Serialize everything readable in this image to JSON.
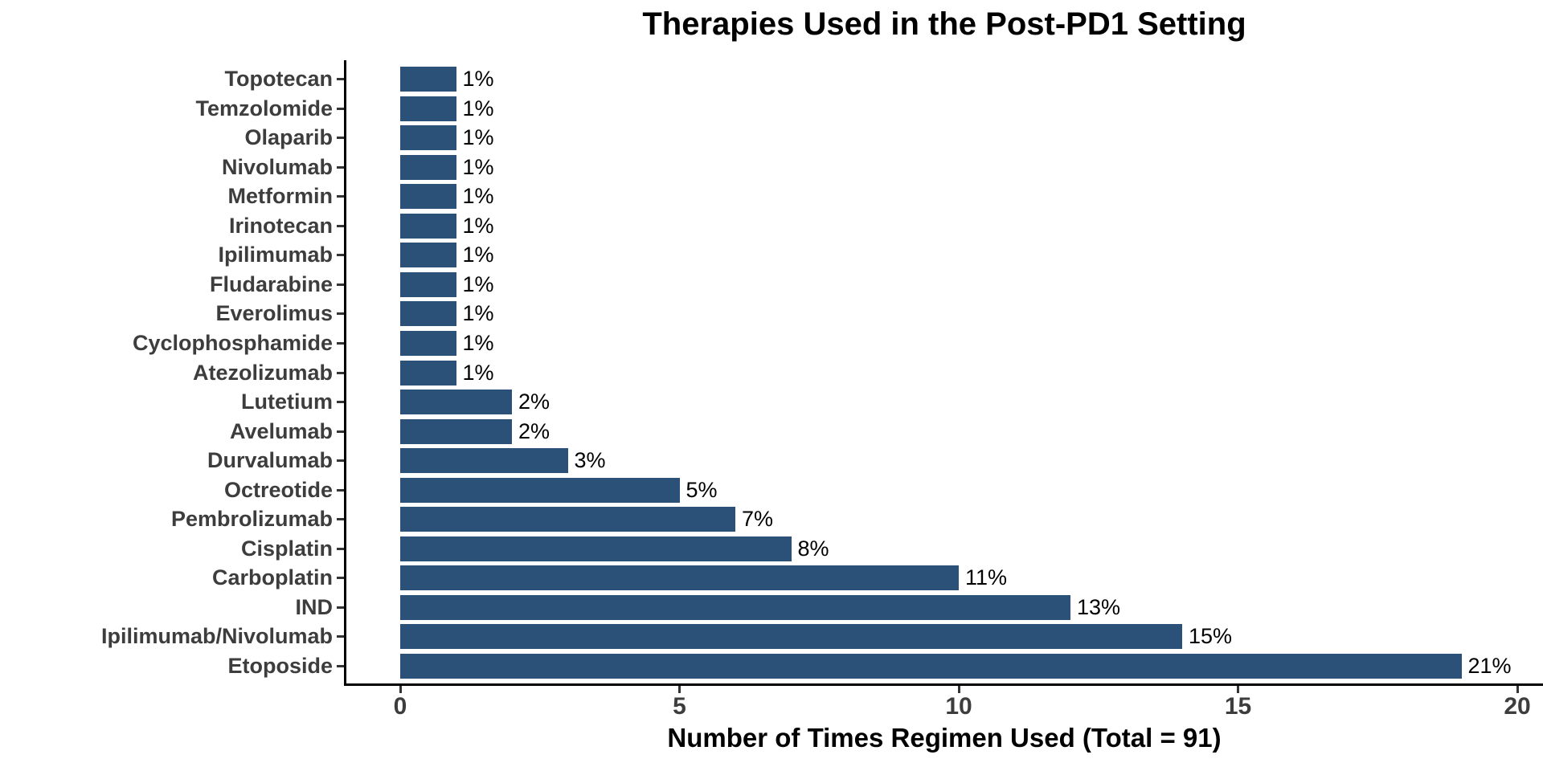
{
  "chart_data": {
    "type": "bar",
    "orientation": "horizontal",
    "title": "Therapies Used in the Post-PD1 Setting",
    "xlabel": "Number of Times Regimen Used (Total = 91)",
    "ylabel": "",
    "total": 91,
    "grid": false,
    "legend": false,
    "categories_top_to_bottom": [
      "Topotecan",
      "Temzolomide",
      "Olaparib",
      "Nivolumab",
      "Metformin",
      "Irinotecan",
      "Ipilimumab",
      "Fludarabine",
      "Everolimus",
      "Cyclophosphamide",
      "Atezolizumab",
      "Lutetium",
      "Avelumab",
      "Durvalumab",
      "Octreotide",
      "Pembrolizumab",
      "Cisplatin",
      "Carboplatin",
      "IND",
      "Ipilimumab/Nivolumab",
      "Etoposide"
    ],
    "values": [
      1,
      1,
      1,
      1,
      1,
      1,
      1,
      1,
      1,
      1,
      1,
      2,
      2,
      3,
      5,
      6,
      7,
      10,
      12,
      14,
      19
    ],
    "bar_labels": [
      "1%",
      "1%",
      "1%",
      "1%",
      "1%",
      "1%",
      "1%",
      "1%",
      "1%",
      "1%",
      "1%",
      "2%",
      "2%",
      "3%",
      "5%",
      "7%",
      "8%",
      "11%",
      "13%",
      "15%",
      "21%"
    ],
    "x_tick_labels": [
      "0",
      "5",
      "10",
      "15",
      "20"
    ],
    "x_tick_values": [
      0,
      5,
      10,
      15,
      20
    ],
    "xlim": [
      0,
      20.5
    ],
    "bar_color": "#2C5178",
    "axis_text_color": "#3D3D3D",
    "value_label_color": "#000000",
    "axis_line_color": "#000000"
  }
}
